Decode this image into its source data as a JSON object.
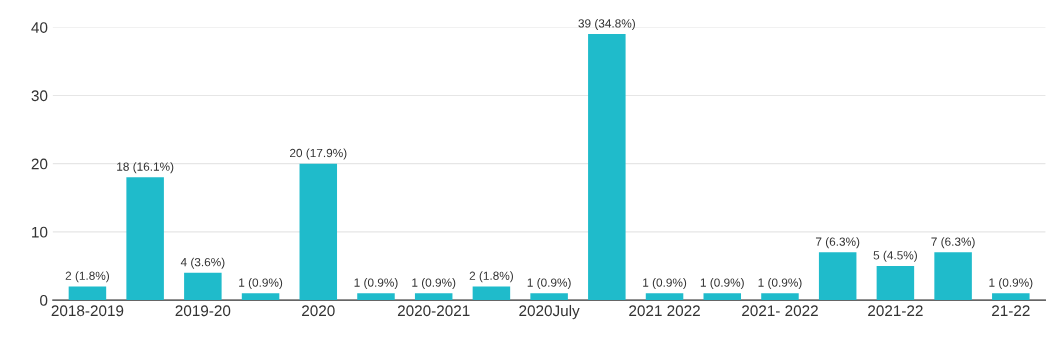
{
  "chart_data": {
    "type": "bar",
    "categories": [
      "2018-2019",
      null,
      "2019-20",
      null,
      "2020",
      null,
      "2020-2021",
      null,
      "2020July",
      null,
      "2021 2022",
      null,
      "2021- 2022",
      null,
      "2021-22",
      null,
      "21-22"
    ],
    "values": [
      2,
      18,
      4,
      1,
      20,
      1,
      1,
      2,
      1,
      39,
      1,
      1,
      1,
      7,
      5,
      7,
      1
    ],
    "value_labels": [
      "2 (1.8%)",
      "18 (16.1%)",
      "4 (3.6%)",
      "1 (0.9%)",
      "20 (17.9%)",
      "1 (0.9%)",
      "1 (0.9%)",
      "2 (1.8%)",
      "1 (0.9%)",
      "39 (34.8%)",
      "1 (0.9%)",
      "1 (0.9%)",
      "1 (0.9%)",
      "7 (6.3%)",
      "5 (4.5%)",
      "7 (6.3%)",
      "1 (0.9%)"
    ],
    "color": "#1fbbcb",
    "ylim": [
      0,
      40
    ],
    "yticks": [
      0,
      10,
      20,
      30,
      40
    ],
    "grid": "y"
  }
}
